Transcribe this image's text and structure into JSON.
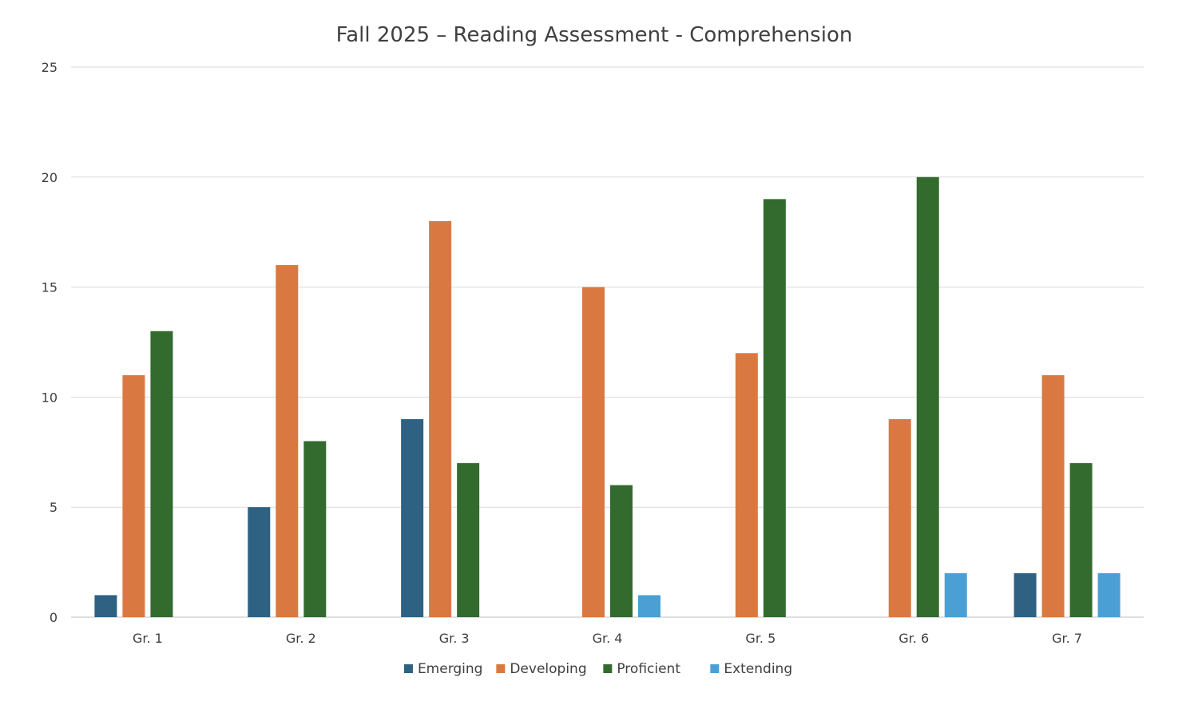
{
  "chart_data": {
    "type": "bar",
    "title": "Fall 2025 – Reading Assessment - Comprehension",
    "xlabel": "",
    "ylabel": "",
    "ylim": [
      0,
      25
    ],
    "yticks": [
      0,
      5,
      10,
      15,
      20,
      25
    ],
    "grid": true,
    "legend_position": "bottom",
    "categories": [
      "Gr. 1",
      "Gr. 2",
      "Gr. 3",
      "Gr. 4",
      "Gr. 5",
      "Gr. 6",
      "Gr. 7"
    ],
    "series": [
      {
        "name": "Emerging",
        "color": "#2e6182",
        "values": [
          1,
          5,
          9,
          0,
          0,
          0,
          2
        ]
      },
      {
        "name": "Developing",
        "color": "#d97941",
        "values": [
          11,
          16,
          18,
          15,
          12,
          9,
          11
        ]
      },
      {
        "name": "Proficient",
        "color": "#336b2e",
        "values": [
          13,
          8,
          7,
          6,
          19,
          20,
          7
        ]
      },
      {
        "name": "Extending",
        "color": "#4aa0d5",
        "values": [
          0,
          0,
          0,
          1,
          0,
          2,
          2
        ]
      }
    ]
  }
}
